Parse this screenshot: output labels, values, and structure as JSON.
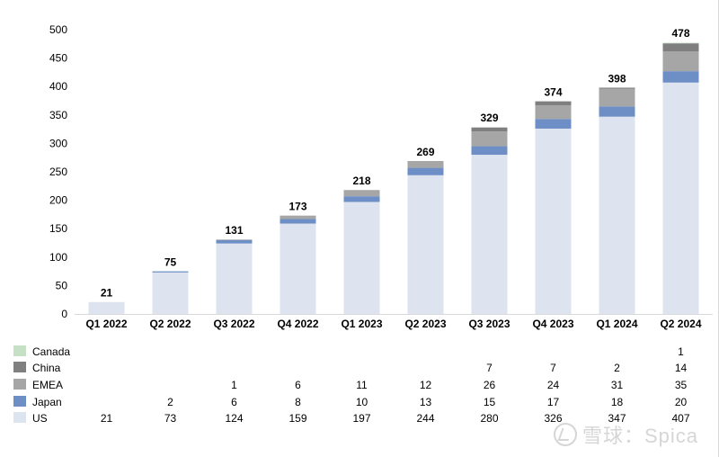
{
  "chart_data": {
    "type": "bar",
    "stacked": true,
    "categories": [
      "Q1 2022",
      "Q2 2022",
      "Q3 2022",
      "Q4 2022",
      "Q1 2023",
      "Q2 2023",
      "Q3 2023",
      "Q4 2023",
      "Q1 2024",
      "Q2 2024"
    ],
    "series": [
      {
        "name": "US",
        "color": "#dde4ef",
        "values": [
          21,
          73,
          124,
          159,
          197,
          244,
          280,
          326,
          347,
          407
        ]
      },
      {
        "name": "Japan",
        "color": "#6d8fc6",
        "values": [
          null,
          2,
          6,
          8,
          10,
          13,
          15,
          17,
          18,
          20
        ]
      },
      {
        "name": "EMEA",
        "color": "#a6a6a6",
        "values": [
          null,
          null,
          1,
          6,
          11,
          12,
          26,
          24,
          31,
          35
        ]
      },
      {
        "name": "China",
        "color": "#7f7f7f",
        "values": [
          null,
          null,
          null,
          null,
          null,
          null,
          7,
          7,
          2,
          14
        ]
      },
      {
        "name": "Canada",
        "color": "#c5e0c4",
        "values": [
          null,
          null,
          null,
          null,
          null,
          null,
          null,
          null,
          null,
          1
        ]
      }
    ],
    "totals": [
      21,
      75,
      131,
      173,
      218,
      269,
      329,
      374,
      398,
      478
    ],
    "ylim": [
      0,
      500
    ],
    "yticks": [
      0,
      50,
      100,
      150,
      200,
      250,
      300,
      350,
      400,
      450,
      500
    ],
    "title": "",
    "xlabel": "",
    "ylabel": "",
    "grid": false,
    "legend_position": "bottom data table",
    "table_row_order": [
      "Canada",
      "China",
      "EMEA",
      "Japan",
      "US"
    ]
  },
  "watermark": "雪球：Spica"
}
